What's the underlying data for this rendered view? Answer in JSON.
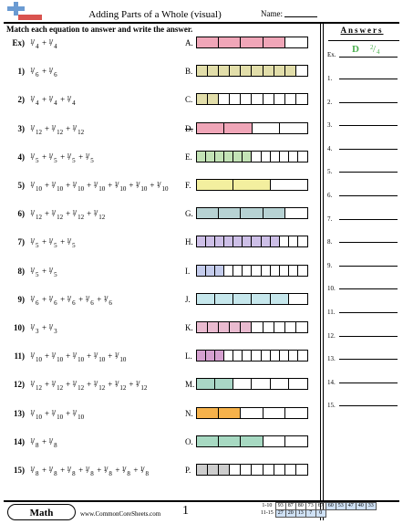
{
  "header": {
    "title": "Adding Parts of a Whole (visual)",
    "name_label": "Name:",
    "instructions": "Match each equation to answer and write the answer."
  },
  "colors": {
    "pink": "#f0a6b8",
    "khaki": "#e2deaa",
    "green": "#c3e3b6",
    "yellow": "#f3ef9f",
    "teal": "#b7d2d3",
    "lavender": "#cdbfe7",
    "blue": "#c4ccec",
    "cyan": "#c6e7ec",
    "pink2": "#e9bbd0",
    "magenta": "#d5a0cf",
    "seagreen": "#a9d6c6",
    "orange": "#f6b24b",
    "mint": "#a7d9c2",
    "gray": "#cdcdcd",
    "answer_green": "#4caf50"
  },
  "questions": [
    {
      "num": "Ex)",
      "terms": [
        [
          "1",
          "4"
        ],
        [
          "1",
          "4"
        ]
      ]
    },
    {
      "num": "1)",
      "terms": [
        [
          "1",
          "6"
        ],
        [
          "1",
          "6"
        ]
      ]
    },
    {
      "num": "2)",
      "terms": [
        [
          "1",
          "4"
        ],
        [
          "1",
          "4"
        ],
        [
          "1",
          "4"
        ]
      ]
    },
    {
      "num": "3)",
      "terms": [
        [
          "1",
          "12"
        ],
        [
          "1",
          "12"
        ],
        [
          "1",
          "12"
        ]
      ]
    },
    {
      "num": "4)",
      "terms": [
        [
          "1",
          "5"
        ],
        [
          "1",
          "5"
        ],
        [
          "1",
          "5"
        ],
        [
          "1",
          "5"
        ]
      ]
    },
    {
      "num": "5)",
      "terms": [
        [
          "1",
          "10"
        ],
        [
          "1",
          "10"
        ],
        [
          "1",
          "10"
        ],
        [
          "1",
          "10"
        ],
        [
          "1",
          "10"
        ],
        [
          "1",
          "10"
        ],
        [
          "1",
          "10"
        ]
      ]
    },
    {
      "num": "6)",
      "terms": [
        [
          "1",
          "12"
        ],
        [
          "1",
          "12"
        ],
        [
          "1",
          "12"
        ],
        [
          "1",
          "12"
        ]
      ]
    },
    {
      "num": "7)",
      "terms": [
        [
          "1",
          "5"
        ],
        [
          "1",
          "5"
        ],
        [
          "1",
          "5"
        ]
      ]
    },
    {
      "num": "8)",
      "terms": [
        [
          "1",
          "5"
        ],
        [
          "1",
          "5"
        ]
      ]
    },
    {
      "num": "9)",
      "terms": [
        [
          "1",
          "6"
        ],
        [
          "1",
          "6"
        ],
        [
          "1",
          "6"
        ],
        [
          "1",
          "6"
        ],
        [
          "1",
          "6"
        ]
      ]
    },
    {
      "num": "10)",
      "terms": [
        [
          "1",
          "3"
        ],
        [
          "1",
          "3"
        ]
      ]
    },
    {
      "num": "11)",
      "terms": [
        [
          "1",
          "10"
        ],
        [
          "1",
          "10"
        ],
        [
          "1",
          "10"
        ],
        [
          "1",
          "10"
        ],
        [
          "1",
          "10"
        ]
      ]
    },
    {
      "num": "12)",
      "terms": [
        [
          "1",
          "12"
        ],
        [
          "1",
          "12"
        ],
        [
          "1",
          "12"
        ],
        [
          "1",
          "12"
        ],
        [
          "1",
          "12"
        ],
        [
          "1",
          "12"
        ]
      ]
    },
    {
      "num": "13)",
      "terms": [
        [
          "1",
          "10"
        ],
        [
          "1",
          "10"
        ],
        [
          "1",
          "10"
        ]
      ]
    },
    {
      "num": "14)",
      "terms": [
        [
          "1",
          "8"
        ],
        [
          "1",
          "8"
        ]
      ]
    },
    {
      "num": "15)",
      "terms": [
        [
          "1",
          "8"
        ],
        [
          "1",
          "8"
        ],
        [
          "1",
          "8"
        ],
        [
          "1",
          "8"
        ],
        [
          "1",
          "8"
        ],
        [
          "1",
          "8"
        ],
        [
          "1",
          "8"
        ]
      ]
    }
  ],
  "options": [
    {
      "letter": "A.",
      "parts": 5,
      "filled": 4,
      "color": "pink"
    },
    {
      "letter": "B.",
      "parts": 10,
      "filled": 9,
      "color": "khaki"
    },
    {
      "letter": "C.",
      "parts": 10,
      "filled": 2,
      "color": "khaki"
    },
    {
      "letter": "D.",
      "parts": 4,
      "filled": 2,
      "color": "pink",
      "struck": true
    },
    {
      "letter": "E.",
      "parts": 12,
      "filled": 6,
      "color": "green"
    },
    {
      "letter": "F.",
      "parts": 3,
      "filled": 2,
      "color": "yellow"
    },
    {
      "letter": "G.",
      "parts": 5,
      "filled": 4,
      "color": "teal"
    },
    {
      "letter": "H.",
      "parts": 12,
      "filled": 9,
      "color": "lavender"
    },
    {
      "letter": "I.",
      "parts": 12,
      "filled": 3,
      "color": "blue"
    },
    {
      "letter": "J.",
      "parts": 6,
      "filled": 5,
      "color": "cyan"
    },
    {
      "letter": "K.",
      "parts": 10,
      "filled": 5,
      "color": "pink2"
    },
    {
      "letter": "L.",
      "parts": 12,
      "filled": 3,
      "color": "magenta"
    },
    {
      "letter": "M.",
      "parts": 6,
      "filled": 2,
      "color": "seagreen"
    },
    {
      "letter": "N.",
      "parts": 5,
      "filled": 2,
      "color": "orange"
    },
    {
      "letter": "O.",
      "parts": 5,
      "filled": 3,
      "color": "mint"
    },
    {
      "letter": "P.",
      "parts": 10,
      "filled": 3,
      "color": "gray"
    }
  ],
  "answers": {
    "heading": "Answers",
    "example_label": "Ex.",
    "example_letter": "D",
    "example_fraction": "2/4",
    "rows": [
      "1.",
      "2.",
      "3.",
      "4.",
      "5.",
      "6.",
      "7.",
      "8.",
      "9.",
      "10.",
      "11.",
      "12.",
      "13.",
      "14.",
      "15."
    ]
  },
  "footer": {
    "badge": "Math",
    "site": "www.CommonCoreSheets.com",
    "page": "1",
    "stats": [
      {
        "label": "1-10",
        "values": [
          "93",
          "87",
          "80",
          "73",
          "67",
          "60",
          "53",
          "47",
          "40",
          "33"
        ]
      },
      {
        "label": "11-15",
        "values": [
          "27",
          "20",
          "13",
          "7",
          "0"
        ]
      }
    ]
  }
}
